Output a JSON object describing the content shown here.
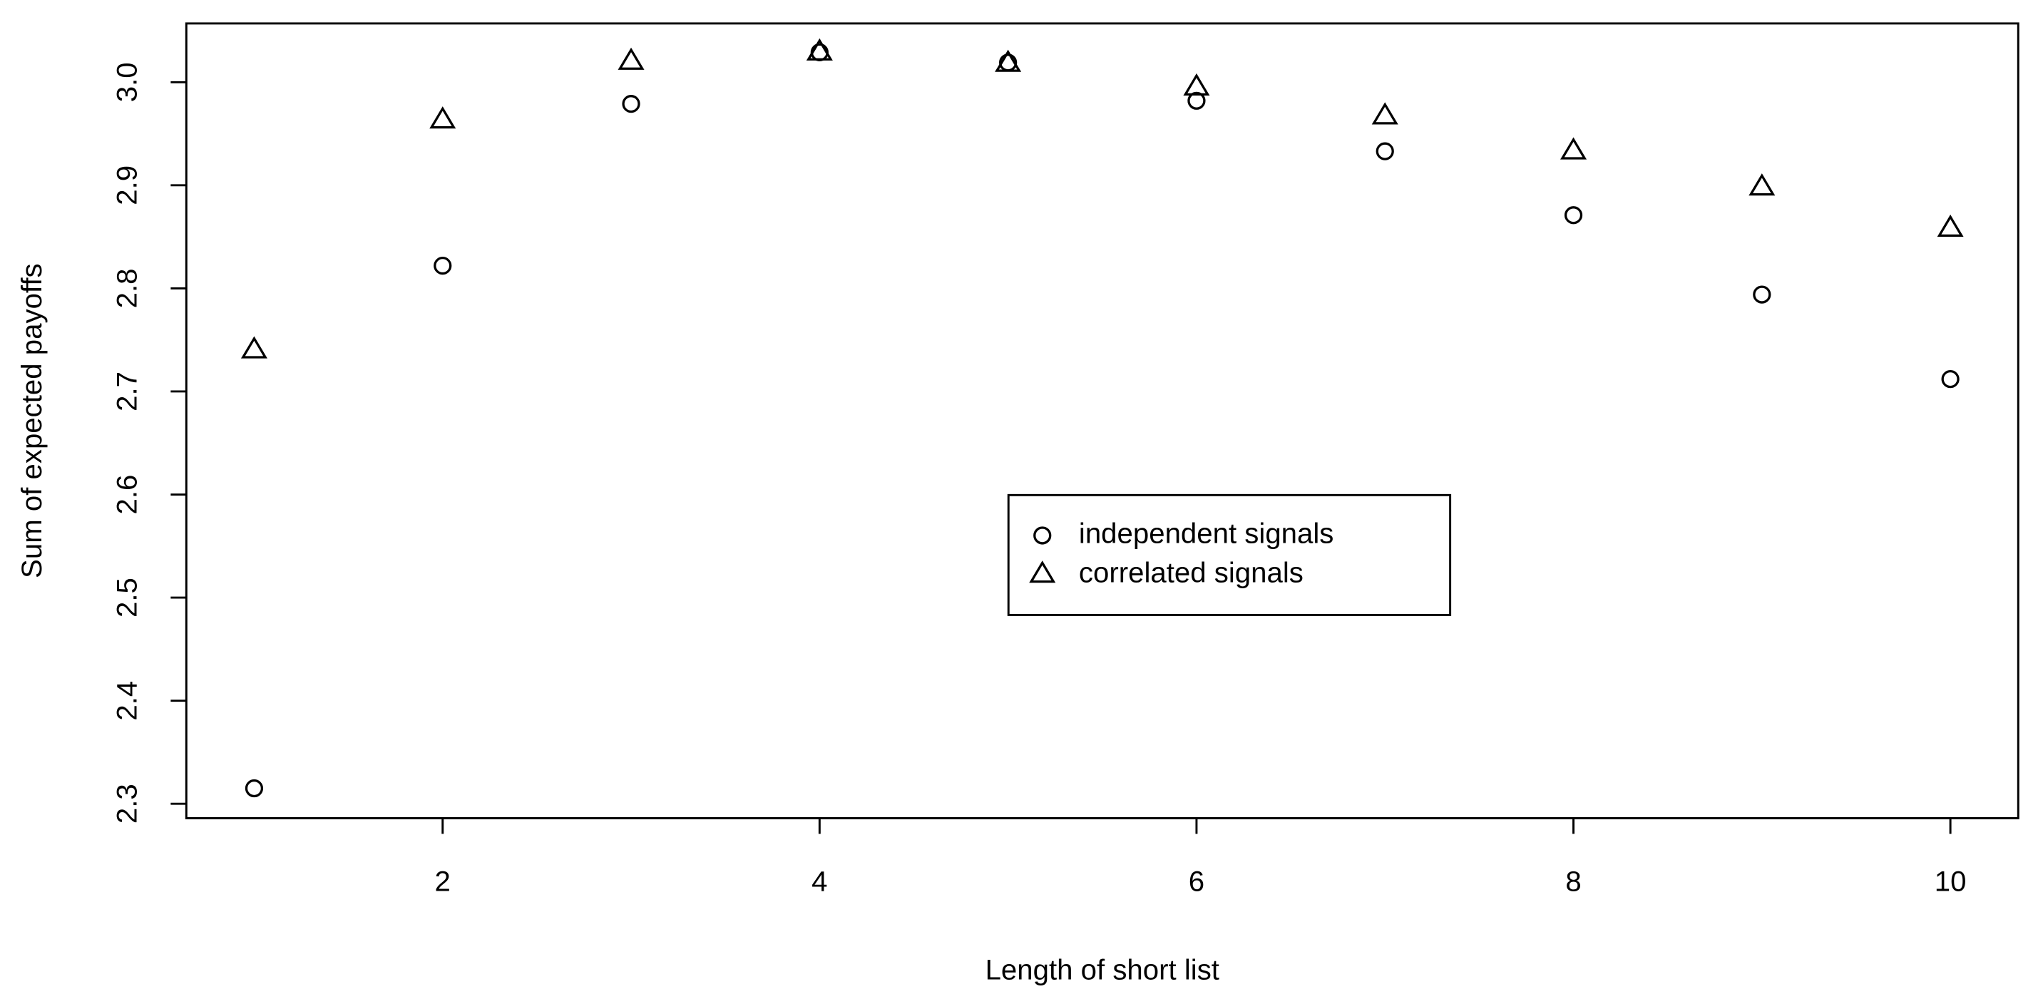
{
  "chart_data": {
    "type": "scatter",
    "xlabel": "Length of short list",
    "ylabel": "Sum of expected payoffs",
    "x": [
      1,
      2,
      3,
      4,
      5,
      6,
      7,
      8,
      9,
      10
    ],
    "series": [
      {
        "name": "independent signals",
        "color": "#000000",
        "marker": "circle",
        "values": [
          2.315,
          2.822,
          2.979,
          3.029,
          3.019,
          2.982,
          2.933,
          2.871,
          2.794,
          2.712
        ]
      },
      {
        "name": "correlated signals",
        "color": "#000000",
        "marker": "triangle",
        "values": [
          2.74,
          2.963,
          3.02,
          3.029,
          3.018,
          2.995,
          2.967,
          2.933,
          2.898,
          2.858
        ]
      }
    ],
    "xlim": [
      0.64,
      10.36
    ],
    "ylim": [
      2.286,
      3.057
    ],
    "xticks": [
      2,
      4,
      6,
      8,
      10
    ],
    "yticks": [
      2.3,
      2.4,
      2.5,
      2.6,
      2.7,
      2.8,
      2.9,
      {
        "value": 3,
        "label": "3.0"
      }
    ],
    "grid": false
  }
}
